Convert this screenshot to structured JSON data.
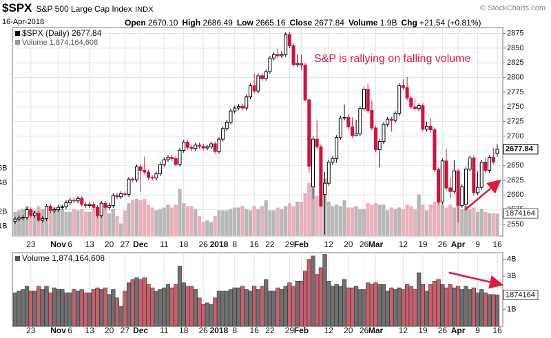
{
  "header": {
    "symbol": "$SPX",
    "name": "S&P 500 Large Cap Index",
    "exchange": "INDX",
    "source": "© StockCharts.com",
    "date": "16-Apr-2018",
    "fields": [
      {
        "label": "Open",
        "value": "2670.10"
      },
      {
        "label": "High",
        "value": "2686.49"
      },
      {
        "label": "Low",
        "value": "2665.16"
      },
      {
        "label": "Close",
        "value": "2677.84"
      },
      {
        "label": "Volume",
        "value": "1.9B"
      },
      {
        "label": "Chg",
        "value": "+21.54 (+0.81%)"
      }
    ]
  },
  "chart_data": {
    "type": "candlestick",
    "price_legend": "$SPX (Daily) 2677.84",
    "volume_legend": "Volume 1,874,164,608",
    "annotation": "S&P is rallying on falling volume",
    "x": [
      "2017-10-17",
      "2017-10-18",
      "2017-10-19",
      "2017-10-20",
      "2017-10-23",
      "2017-10-24",
      "2017-10-25",
      "2017-10-26",
      "2017-10-27",
      "2017-10-30",
      "2017-10-31",
      "2017-11-01",
      "2017-11-02",
      "2017-11-03",
      "2017-11-06",
      "2017-11-07",
      "2017-11-08",
      "2017-11-09",
      "2017-11-10",
      "2017-11-13",
      "2017-11-14",
      "2017-11-15",
      "2017-11-16",
      "2017-11-17",
      "2017-11-20",
      "2017-11-21",
      "2017-11-22",
      "2017-11-24",
      "2017-11-27",
      "2017-11-28",
      "2017-11-29",
      "2017-11-30",
      "2017-12-01",
      "2017-12-04",
      "2017-12-05",
      "2017-12-06",
      "2017-12-07",
      "2017-12-08",
      "2017-12-11",
      "2017-12-12",
      "2017-12-13",
      "2017-12-14",
      "2017-12-15",
      "2017-12-18",
      "2017-12-19",
      "2017-12-20",
      "2017-12-21",
      "2017-12-22",
      "2017-12-26",
      "2017-12-27",
      "2017-12-28",
      "2017-12-29",
      "2018-01-02",
      "2018-01-03",
      "2018-01-04",
      "2018-01-05",
      "2018-01-08",
      "2018-01-09",
      "2018-01-10",
      "2018-01-11",
      "2018-01-12",
      "2018-01-16",
      "2018-01-17",
      "2018-01-18",
      "2018-01-19",
      "2018-01-22",
      "2018-01-23",
      "2018-01-24",
      "2018-01-25",
      "2018-01-26",
      "2018-01-29",
      "2018-01-30",
      "2018-01-31",
      "2018-02-01",
      "2018-02-02",
      "2018-02-05",
      "2018-02-06",
      "2018-02-07",
      "2018-02-08",
      "2018-02-09",
      "2018-02-12",
      "2018-02-13",
      "2018-02-14",
      "2018-02-15",
      "2018-02-16",
      "2018-02-20",
      "2018-02-21",
      "2018-02-22",
      "2018-02-23",
      "2018-02-26",
      "2018-02-27",
      "2018-02-28",
      "2018-03-01",
      "2018-03-02",
      "2018-03-05",
      "2018-03-06",
      "2018-03-07",
      "2018-03-08",
      "2018-03-09",
      "2018-03-12",
      "2018-03-13",
      "2018-03-14",
      "2018-03-15",
      "2018-03-16",
      "2018-03-19",
      "2018-03-20",
      "2018-03-21",
      "2018-03-22",
      "2018-03-23",
      "2018-03-26",
      "2018-03-27",
      "2018-03-28",
      "2018-03-29",
      "2018-04-02",
      "2018-04-03",
      "2018-04-04",
      "2018-04-05",
      "2018-04-06",
      "2018-04-09",
      "2018-04-10",
      "2018-04-11",
      "2018-04-12",
      "2018-04-13",
      "2018-04-16"
    ],
    "open": [
      2555,
      2559,
      2561,
      2562,
      2575,
      2565,
      2569,
      2557,
      2560,
      2581,
      2573,
      2575,
      2579,
      2580,
      2587,
      2591,
      2590,
      2594,
      2584,
      2582,
      2584,
      2579,
      2565,
      2586,
      2579,
      2582,
      2599,
      2597,
      2602,
      2601,
      2627,
      2626,
      2648,
      2642,
      2639,
      2630,
      2629,
      2636,
      2652,
      2660,
      2664,
      2662,
      2652,
      2676,
      2690,
      2681,
      2679,
      2685,
      2683,
      2680,
      2682,
      2687,
      2674,
      2695,
      2713,
      2724,
      2743,
      2748,
      2751,
      2748,
      2767,
      2786,
      2777,
      2803,
      2798,
      2810,
      2833,
      2839,
      2837,
      2839,
      2873,
      2854,
      2822,
      2824,
      2821,
      2762,
      2614,
      2695,
      2682,
      2601,
      2620,
      2656,
      2662,
      2698,
      2731,
      2732,
      2716,
      2701,
      2704,
      2747,
      2780,
      2744,
      2714,
      2677,
      2691,
      2720,
      2729,
      2727,
      2739,
      2786,
      2783,
      2765,
      2750,
      2747,
      2752,
      2712,
      2717,
      2711,
      2643,
      2588,
      2658,
      2612,
      2606,
      2641,
      2582,
      2584,
      2644,
      2663,
      2604,
      2613,
      2656,
      2642,
      2664,
      2670.1
    ],
    "high": [
      2563,
      2565,
      2566,
      2579,
      2579,
      2573,
      2573,
      2564,
      2585,
      2585,
      2579,
      2583,
      2584,
      2591,
      2595,
      2595,
      2598,
      2598,
      2588,
      2588,
      2588,
      2583,
      2590,
      2590,
      2586,
      2603,
      2603,
      2606,
      2606,
      2631,
      2631,
      2652,
      2652,
      2665,
      2643,
      2634,
      2640,
      2656,
      2664,
      2668,
      2668,
      2666,
      2680,
      2694,
      2694,
      2685,
      2689,
      2689,
      2687,
      2686,
      2691,
      2691,
      2699,
      2717,
      2728,
      2747,
      2752,
      2755,
      2755,
      2771,
      2790,
      2807,
      2807,
      2807,
      2814,
      2837,
      2843,
      2849,
      2845,
      2877,
      2877,
      2858,
      2839,
      2839,
      2825,
      2763,
      2701,
      2727,
      2686,
      2639,
      2660,
      2666,
      2702,
      2735,
      2754,
      2737,
      2732,
      2728,
      2751,
      2784,
      2789,
      2761,
      2718,
      2695,
      2724,
      2733,
      2733,
      2743,
      2790,
      2797,
      2801,
      2769,
      2763,
      2756,
      2756,
      2725,
      2731,
      2715,
      2647,
      2662,
      2678,
      2630,
      2660,
      2645,
      2618,
      2648,
      2667,
      2667,
      2640,
      2660,
      2663,
      2668,
      2680,
      2686.49
    ],
    "low": [
      2551,
      2555,
      2557,
      2558,
      2561,
      2561,
      2553,
      2553,
      2556,
      2569,
      2569,
      2571,
      2575,
      2576,
      2583,
      2586,
      2586,
      2580,
      2578,
      2578,
      2575,
      2561,
      2561,
      2575,
      2575,
      2578,
      2593,
      2593,
      2597,
      2597,
      2622,
      2622,
      2605,
      2635,
      2626,
      2625,
      2625,
      2632,
      2648,
      2656,
      2658,
      2648,
      2648,
      2672,
      2677,
      2675,
      2675,
      2679,
      2676,
      2676,
      2678,
      2670,
      2670,
      2691,
      2709,
      2720,
      2739,
      2744,
      2744,
      2744,
      2763,
      2773,
      2773,
      2794,
      2794,
      2806,
      2829,
      2833,
      2833,
      2835,
      2850,
      2818,
      2818,
      2813,
      2759,
      2638,
      2593,
      2678,
      2580,
      2533,
      2616,
      2651,
      2655,
      2694,
      2727,
      2711,
      2697,
      2700,
      2700,
      2743,
      2740,
      2710,
      2673,
      2647,
      2687,
      2716,
      2708,
      2723,
      2735,
      2779,
      2761,
      2746,
      2743,
      2743,
      2708,
      2708,
      2707,
      2639,
      2584,
      2584,
      2608,
      2594,
      2602,
      2553,
      2578,
      2574,
      2640,
      2599,
      2600,
      2609,
      2638,
      2638,
      2652,
      2665.16
    ],
    "close": [
      2559,
      2561,
      2562,
      2575,
      2565,
      2569,
      2557,
      2560,
      2581,
      2573,
      2575,
      2579,
      2580,
      2587,
      2591,
      2590,
      2594,
      2584,
      2582,
      2584,
      2579,
      2565,
      2586,
      2579,
      2582,
      2599,
      2597,
      2602,
      2601,
      2627,
      2626,
      2648,
      2642,
      2639,
      2630,
      2629,
      2636,
      2652,
      2660,
      2664,
      2662,
      2652,
      2676,
      2690,
      2681,
      2679,
      2685,
      2683,
      2680,
      2682,
      2687,
      2674,
      2695,
      2713,
      2724,
      2743,
      2748,
      2751,
      2748,
      2767,
      2786,
      2777,
      2803,
      2798,
      2810,
      2833,
      2839,
      2837,
      2839,
      2873,
      2854,
      2822,
      2824,
      2821,
      2762,
      2649,
      2695,
      2682,
      2581,
      2620,
      2656,
      2662,
      2698,
      2731,
      2732,
      2716,
      2701,
      2704,
      2747,
      2780,
      2744,
      2714,
      2677,
      2691,
      2720,
      2729,
      2727,
      2739,
      2786,
      2783,
      2765,
      2750,
      2747,
      2752,
      2712,
      2717,
      2711,
      2643,
      2588,
      2658,
      2612,
      2606,
      2641,
      2582,
      2614,
      2644,
      2663,
      2604,
      2613,
      2656,
      2642,
      2664,
      2656,
      2677.84
    ],
    "volume": [
      2000000000.0,
      2100000000.0,
      2200000000.0,
      2400000000.0,
      2100000000.0,
      2100000000.0,
      2400000000.0,
      2200000000.0,
      2400000000.0,
      2000000000.0,
      2300000000.0,
      2200000000.0,
      2200000000.0,
      2000000000.0,
      2000000000.0,
      2200000000.0,
      2100000000.0,
      2200000000.0,
      2000000000.0,
      2000000000.0,
      2200000000.0,
      2300000000.0,
      2200000000.0,
      2300000000.0,
      1900000000.0,
      2200000000.0,
      1700000000.0,
      1200000000.0,
      2100000000.0,
      2600000000.0,
      2800000000.0,
      2900000000.0,
      2800000000.0,
      2900000000.0,
      2500000000.0,
      2300000000.0,
      2100000000.0,
      2200000000.0,
      2300000000.0,
      2500000000.0,
      2300000000.0,
      2500000000.0,
      3600000000.0,
      2600000000.0,
      2400000000.0,
      2400000000.0,
      2200000000.0,
      1700000000.0,
      1300000000.0,
      1400000000.0,
      1300000000.0,
      1700000000.0,
      2100000000.0,
      2100000000.0,
      2100000000.0,
      2200000000.0,
      2300000000.0,
      2300000000.0,
      2400000000.0,
      2200000000.0,
      2100000000.0,
      2400000000.0,
      2200000000.0,
      2400000000.0,
      2800000000.0,
      2100000000.0,
      2100000000.0,
      2300000000.0,
      2200000000.0,
      2400000000.0,
      2600000000.0,
      2400000000.0,
      2700000000.0,
      2700000000.0,
      3300000000.0,
      4000000000.0,
      4200000000.0,
      3100000000.0,
      3500000000.0,
      4300000000.0,
      2700000000.0,
      2400000000.0,
      2500000000.0,
      2400000000.0,
      2800000000.0,
      2300000000.0,
      2300000000.0,
      2400000000.0,
      2200000000.0,
      2200000000.0,
      2600000000.0,
      2500000000.0,
      2600000000.0,
      2500000000.0,
      2500000000.0,
      2100000000.0,
      2300000000.0,
      2200000000.0,
      2300000000.0,
      2200000000.0,
      2500000000.0,
      2400000000.0,
      2200000000.0,
      3200000000.0,
      2500000000.0,
      2100000000.0,
      2500000000.0,
      2700000000.0,
      2800000000.0,
      2500000000.0,
      2300000000.0,
      2500000000.0,
      2300000000.0,
      2400000000.0,
      2200000000.0,
      2400000000.0,
      2200000000.0,
      2300000000.0,
      2000000000.0,
      2200000000.0,
      2000000000.0,
      1900000000.0,
      1900000000.0,
      1874164608
    ],
    "volume_last_label": {
      "value": 1874164608,
      "label": "1874164"
    },
    "up_color": "#000000",
    "down_color": "#d1103c",
    "overlay_up_color": "#b8b8b8",
    "overlay_down_color": "#eab0bc",
    "panel_up_color": "#707070",
    "panel_down_color": "#c5616f",
    "xticks": [
      {
        "value": "2017-10-23",
        "label": "23"
      },
      {
        "value": "2017-11-01",
        "label": "Nov"
      },
      {
        "value": "2017-11-06",
        "label": "6"
      },
      {
        "value": "2017-11-13",
        "label": "13"
      },
      {
        "value": "2017-11-20",
        "label": "20"
      },
      {
        "value": "2017-11-27",
        "label": "27"
      },
      {
        "value": "2017-12-01",
        "label": "Dec"
      },
      {
        "value": "2017-12-11",
        "label": "11"
      },
      {
        "value": "2017-12-18",
        "label": "18"
      },
      {
        "value": "2017-12-26",
        "label": "26"
      },
      {
        "value": "2018-01-02",
        "label": "2018"
      },
      {
        "value": "2018-01-08",
        "label": "8"
      },
      {
        "value": "2018-01-16",
        "label": "16"
      },
      {
        "value": "2018-01-22",
        "label": "22"
      },
      {
        "value": "2018-01-29",
        "label": "29"
      },
      {
        "value": "2018-02-01",
        "label": "Feb"
      },
      {
        "value": "2018-02-12",
        "label": "12"
      },
      {
        "value": "2018-02-20",
        "label": "20"
      },
      {
        "value": "2018-02-26",
        "label": "26"
      },
      {
        "value": "2018-03-01",
        "label": "Mar"
      },
      {
        "value": "2018-03-12",
        "label": "12"
      },
      {
        "value": "2018-03-19",
        "label": "19"
      },
      {
        "value": "2018-03-26",
        "label": "26"
      },
      {
        "value": "2018-04-02",
        "label": "Apr"
      },
      {
        "value": "2018-04-09",
        "label": "9"
      },
      {
        "value": "2018-04-16",
        "label": "16"
      }
    ],
    "ylim": [
      2530,
      2885
    ],
    "yticks": [
      2550,
      2575,
      2600,
      2625,
      2650,
      2675,
      2700,
      2725,
      2750,
      2775,
      2800,
      2825,
      2850,
      2875
    ],
    "overlay_volume_ylim": [
      300000000.0,
      14800000000.0
    ],
    "overlay_volume_yticks": [
      {
        "value": 1000000000.0,
        "label": "1B"
      },
      {
        "value": 2000000000.0,
        "label": "2B"
      },
      {
        "value": 4000000000.0,
        "label": "4B"
      },
      {
        "value": 5000000000.0,
        "label": "5B"
      }
    ],
    "volume_ylim": [
      0,
      4400000000.0
    ],
    "volume_yticks": [
      {
        "value": 1000000000.0,
        "label": "1B"
      },
      {
        "value": 3000000000.0,
        "label": "3B"
      },
      {
        "value": 4000000000.0,
        "label": "4B"
      }
    ],
    "grid": true
  }
}
